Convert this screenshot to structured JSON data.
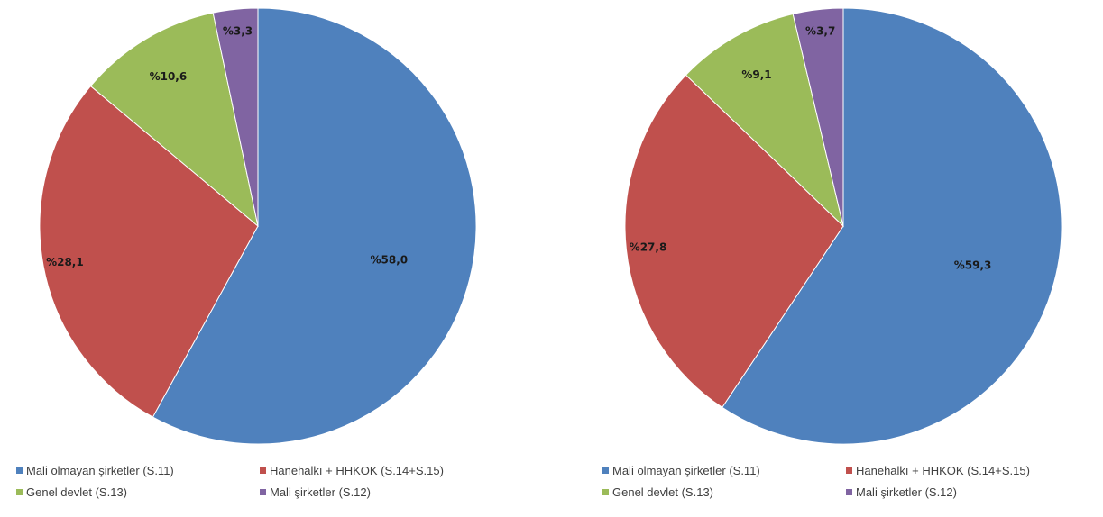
{
  "chart_data": [
    {
      "type": "pie",
      "categories": [
        "Mali olmayan şirketler (S.11)",
        "Hanehalkı + HHKOK (S.14+S.15)",
        "Genel devlet (S.13)",
        "Mali şirketler (S.12)"
      ],
      "values": [
        58.0,
        28.1,
        10.6,
        3.3
      ],
      "data_labels": [
        "%58,0",
        "%28,1",
        "%10,6",
        "%3,3"
      ],
      "colors": [
        "#4f81bd",
        "#c0504d",
        "#9bbb59",
        "#8064a2"
      ],
      "start_angle": "12 o'clock",
      "direction": "clockwise",
      "legend": "bottom"
    },
    {
      "type": "pie",
      "categories": [
        "Mali olmayan şirketler (S.11)",
        "Hanehalkı + HHKOK (S.14+S.15)",
        "Genel devlet (S.13)",
        "Mali şirketler (S.12)"
      ],
      "values": [
        59.3,
        27.8,
        9.1,
        3.7
      ],
      "data_labels": [
        "%59,3",
        "%27,8",
        "%9,1",
        "%3,7"
      ],
      "colors": [
        "#4f81bd",
        "#c0504d",
        "#9bbb59",
        "#8064a2"
      ],
      "start_angle": "12 o'clock",
      "direction": "clockwise",
      "legend": "bottom"
    }
  ]
}
